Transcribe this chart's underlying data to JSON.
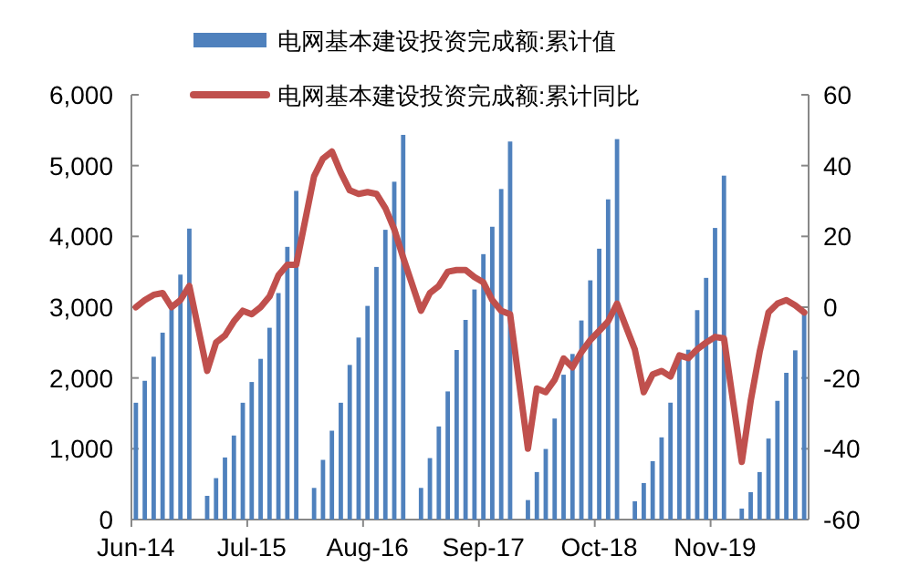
{
  "chart_data": {
    "type": "bar",
    "categories": [
      "Jun-14",
      null,
      null,
      null,
      null,
      null,
      null,
      null,
      null,
      null,
      null,
      null,
      null,
      "Jul-15",
      null,
      null,
      null,
      null,
      null,
      null,
      null,
      null,
      null,
      null,
      null,
      null,
      "Aug-16",
      null,
      null,
      null,
      null,
      null,
      null,
      null,
      null,
      null,
      null,
      null,
      null,
      "Sep-17",
      null,
      null,
      null,
      null,
      null,
      null,
      null,
      null,
      null,
      null,
      null,
      null,
      "Oct-18",
      null,
      null,
      null,
      null,
      null,
      null,
      null,
      null,
      null,
      null,
      null,
      null,
      "Nov-19",
      null,
      null,
      null,
      null,
      null,
      null,
      null,
      null,
      null,
      null
    ],
    "series": [
      {
        "name": "电网基本建设投资完成额:累计值",
        "color": "#4f81bd",
        "values": [
          1650,
          1960,
          2300,
          2640,
          3000,
          3460,
          4110,
          null,
          335,
          585,
          877,
          1187,
          1650,
          1943,
          2270,
          2709,
          3199,
          3852,
          4643,
          null,
          447,
          843,
          1255,
          1650,
          2184,
          2571,
          3018,
          3568,
          4093,
          4772,
          5434,
          null,
          447,
          868,
          1315,
          1810,
          2395,
          2820,
          3250,
          3749,
          4136,
          4669,
          5340,
          null,
          275,
          671,
          997,
          1427,
          2046,
          2339,
          2812,
          3379,
          3826,
          4523,
          5374,
          null,
          258,
          516,
          825,
          1161,
          1651,
          2279,
          2399,
          2958,
          3414,
          4119,
          4858,
          null,
          155,
          387,
          671,
          1144,
          1677,
          2073,
          2390,
          2906
        ]
      },
      {
        "name": "电网基本建设投资完成额:累计同比",
        "type": "line",
        "axis": "y2",
        "color": "#c0504d",
        "values": [
          0,
          2,
          3.5,
          4,
          0,
          2,
          6,
          null,
          -18,
          -10,
          -8,
          -4,
          -1,
          -2,
          0,
          3,
          9,
          12,
          12,
          null,
          37,
          42,
          44,
          38,
          33,
          32,
          32.5,
          32,
          28,
          22,
          14,
          null,
          -1,
          4,
          6,
          10,
          10.5,
          10.5,
          8.5,
          7,
          2,
          -1,
          -2,
          null,
          -40,
          -23,
          -24,
          -20.5,
          -14.5,
          -17,
          -12.7,
          -9.3,
          -6.7,
          -4,
          1,
          null,
          -12,
          -24,
          -19,
          -18,
          -19.6,
          -13.6,
          -14.4,
          -11.9,
          -10,
          -8.4,
          -8.8,
          null,
          -43.7,
          -26.5,
          -12.7,
          -1.5,
          1,
          2,
          0.5,
          -1.5
        ]
      }
    ],
    "ylim": [
      0,
      6000
    ],
    "yticks": [
      0,
      {
        "value": 1000,
        "label": "1,000"
      },
      {
        "value": 2000,
        "label": "2,000"
      },
      {
        "value": 3000,
        "label": "3,000"
      },
      {
        "value": 4000,
        "label": "4,000"
      },
      {
        "value": 5000,
        "label": "5,000"
      },
      {
        "value": 6000,
        "label": "6,000"
      }
    ],
    "y2lim": [
      -60,
      60
    ],
    "y2ticks": [
      -60,
      -40,
      -20,
      0,
      20,
      40,
      60
    ],
    "grid": false,
    "legend": "top"
  }
}
